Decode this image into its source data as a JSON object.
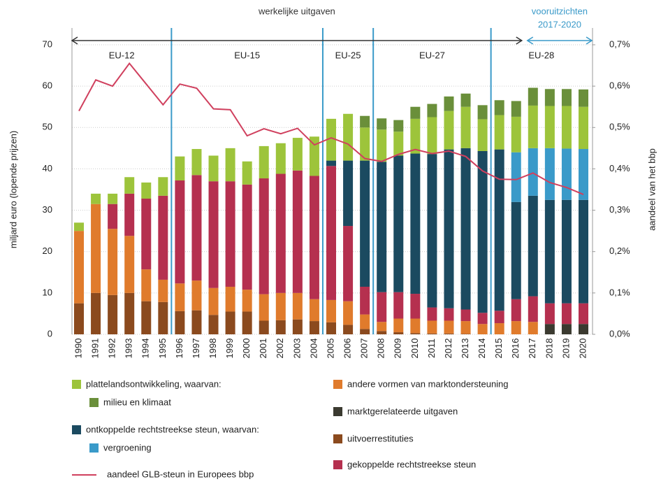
{
  "chart_data": {
    "type": "bar",
    "categories": [
      "1990",
      "1991",
      "1992",
      "1993",
      "1994",
      "1995",
      "1996",
      "1997",
      "1998",
      "1999",
      "2000",
      "2001",
      "2002",
      "2003",
      "2004",
      "2005",
      "2006",
      "2007",
      "2008",
      "2009",
      "2010",
      "2011",
      "2012",
      "2013",
      "2014",
      "2015",
      "2016",
      "2017",
      "2018",
      "2019",
      "2020"
    ],
    "series": [
      {
        "name": "uitvoerrestituties",
        "color": "#8b4a1e",
        "values": [
          7.5,
          10,
          9.5,
          10,
          8,
          7.8,
          5.6,
          5.8,
          4.7,
          5.5,
          5.5,
          3.3,
          3.4,
          3.6,
          3.2,
          2.9,
          2.3,
          1.3,
          0.8,
          0.5,
          0.3,
          0.2,
          0.2,
          0.1,
          null,
          null,
          null,
          null,
          null,
          null,
          null
        ]
      },
      {
        "name": "marktgerelateerde uitgaven",
        "color": "#3b3a30",
        "values": [
          null,
          null,
          null,
          null,
          null,
          null,
          null,
          null,
          null,
          null,
          null,
          null,
          null,
          null,
          null,
          null,
          null,
          null,
          null,
          null,
          null,
          null,
          null,
          null,
          null,
          null,
          null,
          null,
          2.5,
          2.5,
          2.5
        ]
      },
      {
        "name": "andere vormen van marktondersteuning",
        "color": "#e07b2c",
        "values": [
          17.5,
          21.5,
          16,
          13.8,
          7.7,
          5.4,
          6.7,
          7.2,
          6.5,
          6,
          5.3,
          6.4,
          6.6,
          6.4,
          5.3,
          5.4,
          5.7,
          3.5,
          2.2,
          3.3,
          3.5,
          3.1,
          3.1,
          3.1,
          2.5,
          2.7,
          3.2,
          3,
          null,
          null,
          null
        ]
      },
      {
        "name": "gekoppelde rechtstreekse steun",
        "color": "#b5304f",
        "values": [
          null,
          null,
          6,
          10.2,
          17.1,
          20.3,
          24.9,
          25.5,
          25.8,
          25.5,
          25.4,
          28,
          28.8,
          29.6,
          29.8,
          32.4,
          18.2,
          6.7,
          7.2,
          6.4,
          6,
          3.2,
          3,
          2.8,
          2.7,
          3,
          5.3,
          6.2,
          5,
          5,
          5
        ]
      },
      {
        "name": "ontkoppelde rechtstreekse steun, waarvan:",
        "color": "#1b4a60",
        "values": [
          null,
          null,
          null,
          null,
          null,
          null,
          null,
          null,
          null,
          null,
          null,
          null,
          null,
          null,
          null,
          1.3,
          15.8,
          30.5,
          31.5,
          33,
          33.9,
          37.1,
          38.4,
          39,
          39.1,
          39,
          23.5,
          24.3,
          25,
          25,
          25
        ]
      },
      {
        "name": "vergroening",
        "color": "#3a9ac9",
        "values": [
          null,
          null,
          null,
          null,
          null,
          null,
          null,
          null,
          null,
          null,
          null,
          null,
          null,
          null,
          null,
          null,
          null,
          null,
          null,
          null,
          null,
          null,
          null,
          null,
          null,
          null,
          12,
          11.5,
          12.5,
          12.4,
          12.3
        ]
      },
      {
        "name": "plattelandsontwikkeling, waarvan:",
        "color": "#9dc43b",
        "values": [
          2,
          2.5,
          2.5,
          4,
          3.9,
          4.5,
          5.8,
          6.3,
          6.2,
          8,
          5.6,
          7.8,
          7.4,
          7.9,
          9.5,
          10.1,
          11.3,
          8,
          7.8,
          5.8,
          8.4,
          8.9,
          9.3,
          10,
          7.7,
          8.3,
          8.6,
          10.3,
          10.2,
          10.3,
          10.2
        ]
      },
      {
        "name": "milieu en klimaat",
        "color": "#6a8f3a",
        "values": [
          null,
          null,
          null,
          null,
          null,
          null,
          null,
          null,
          null,
          null,
          null,
          null,
          null,
          null,
          null,
          null,
          null,
          2.8,
          2.7,
          2.8,
          2.9,
          3.2,
          3.5,
          3.2,
          3.4,
          3.6,
          3.8,
          4.3,
          4.1,
          4.1,
          4.2
        ]
      },
      {
        "name": "aandeel GLB-steun in Europees bbp",
        "color": "#d0405e",
        "type": "line",
        "axis": "y2",
        "values": [
          0.54,
          0.615,
          0.6,
          0.655,
          0.605,
          0.555,
          0.605,
          0.595,
          0.545,
          0.543,
          0.48,
          0.497,
          0.485,
          0.498,
          0.458,
          0.475,
          0.46,
          0.425,
          0.418,
          0.435,
          0.447,
          0.437,
          0.443,
          0.43,
          0.395,
          0.375,
          0.374,
          0.39,
          0.367,
          0.355,
          0.338
        ]
      }
    ],
    "ylabel": "miljard euro (lopende prijzen)",
    "y2label": "aandeel van het bbp",
    "ylim": [
      0,
      70
    ],
    "yticks": [
      0,
      10,
      20,
      30,
      40,
      50,
      60,
      70
    ],
    "y2lim": [
      0,
      0.7
    ],
    "y2ticks": [
      {
        "value": 0,
        "label": "0,0%"
      },
      {
        "value": 0.1,
        "label": "0,1%"
      },
      {
        "value": 0.2,
        "label": "0,2%"
      },
      {
        "value": 0.3,
        "label": "0,3%"
      },
      {
        "value": 0.4,
        "label": "0,4%"
      },
      {
        "value": 0.5,
        "label": "0,5%"
      },
      {
        "value": 0.6,
        "label": "0,6%"
      },
      {
        "value": 0.7,
        "label": "0,7%"
      }
    ],
    "grid": true,
    "periods": [
      {
        "label": "EU-12",
        "from": "1990",
        "to": "1995"
      },
      {
        "label": "EU-15",
        "from": "1996",
        "to": "2004"
      },
      {
        "label": "EU-25",
        "from": "2005",
        "to": "2007"
      },
      {
        "label": "EU-27",
        "from": "2008",
        "to": "2014"
      },
      {
        "label": "EU-28",
        "from": "2015",
        "to": "2020"
      }
    ],
    "spans": [
      {
        "label": [
          "werkelijke uitgaven"
        ],
        "from": "1990",
        "to": "2016",
        "color": "#333333"
      },
      {
        "label": [
          "vooruitzichten",
          "2017-2020"
        ],
        "from": "2017",
        "to": "2020",
        "color": "#3a9ac9"
      }
    ]
  }
}
